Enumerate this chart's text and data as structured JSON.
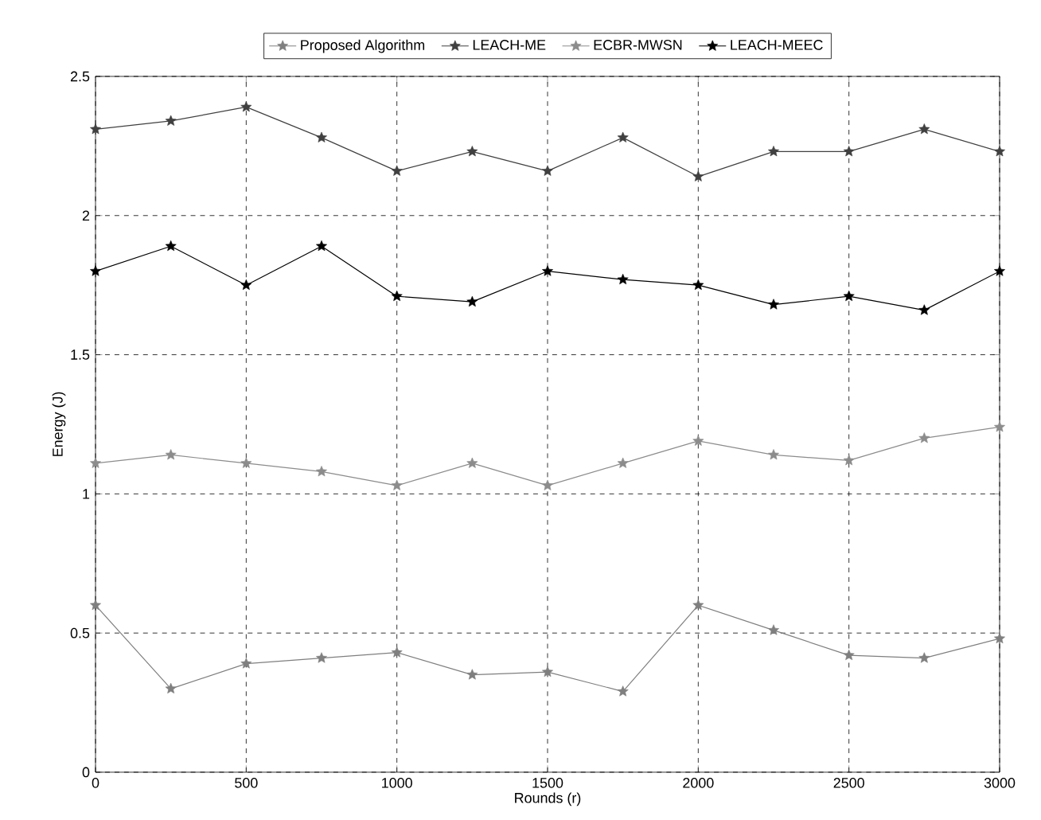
{
  "chart_data": {
    "type": "line",
    "xlabel": "Rounds (r)",
    "ylabel": "Energy (J)",
    "x": [
      0,
      250,
      500,
      750,
      1000,
      1250,
      1500,
      1750,
      2000,
      2250,
      2500,
      2750,
      3000
    ],
    "series": [
      {
        "name": "Proposed Algorithm",
        "color": "#7f7f7f",
        "values": [
          0.6,
          0.3,
          0.39,
          0.41,
          0.43,
          0.35,
          0.36,
          0.29,
          0.6,
          0.51,
          0.42,
          0.41,
          0.48
        ]
      },
      {
        "name": "LEACH-ME",
        "color": "#404040",
        "values": [
          2.31,
          2.34,
          2.39,
          2.28,
          2.16,
          2.23,
          2.16,
          2.28,
          2.14,
          2.23,
          2.23,
          2.31,
          2.23
        ]
      },
      {
        "name": "ECBR-MWSN",
        "color": "#8c8c8c",
        "values": [
          1.11,
          1.14,
          1.11,
          1.08,
          1.03,
          1.11,
          1.03,
          1.11,
          1.19,
          1.14,
          1.12,
          1.2,
          1.24
        ]
      },
      {
        "name": "LEACH-MEEC",
        "color": "#000000",
        "values": [
          1.8,
          1.89,
          1.75,
          1.89,
          1.71,
          1.69,
          1.8,
          1.77,
          1.75,
          1.68,
          1.71,
          1.66,
          1.8
        ]
      }
    ],
    "xlim": [
      0,
      3000
    ],
    "ylim": [
      0,
      2.5
    ],
    "xticks": [
      0,
      500,
      1000,
      1500,
      2000,
      2500,
      3000
    ],
    "yticks": [
      0,
      0.5,
      1,
      1.5,
      2,
      2.5
    ],
    "grid": true,
    "legend": "top",
    "marker": "star",
    "line_style": "solid"
  }
}
